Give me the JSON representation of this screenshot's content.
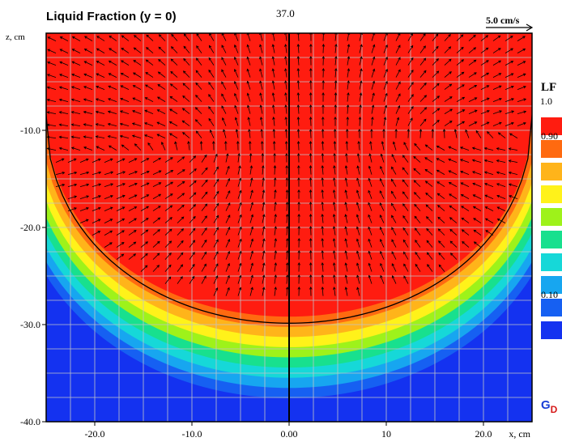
{
  "chart_data": {
    "type": "heatmap",
    "title": "Liquid Fraction  (y = 0)",
    "time_label": "37.0",
    "xlabel": "x, cm",
    "ylabel": "z, cm",
    "xlim": [
      -25,
      25
    ],
    "ylim": [
      -40,
      0
    ],
    "x_ticks": [
      {
        "v": -20,
        "label": "-20.0"
      },
      {
        "v": -10,
        "label": "-10.0"
      },
      {
        "v": 0,
        "label": "0.00"
      },
      {
        "v": 10,
        "label": "10"
      },
      {
        "v": 20,
        "label": "20.0"
      }
    ],
    "y_ticks": [
      {
        "v": -10,
        "label": "-10.0"
      },
      {
        "v": -20,
        "label": "-20.0"
      },
      {
        "v": -30,
        "label": "-30.0"
      },
      {
        "v": -40,
        "label": "-40.0"
      }
    ],
    "grid": true,
    "velocity_scale_label": "5.0 cm/s",
    "pool_boundary": {
      "x_half_width": 25,
      "top_z": -6,
      "bottom_z": -29
    },
    "legend": {
      "title": "LF",
      "top_label": "1.0",
      "levels": [
        {
          "label": "",
          "color": "#ff1c10"
        },
        {
          "label": "0.90",
          "color": "#ff6a10"
        },
        {
          "label": "",
          "color": "#ffb41a"
        },
        {
          "label": "",
          "color": "#fff21a"
        },
        {
          "label": "",
          "color": "#9ef21a"
        },
        {
          "label": "",
          "color": "#18e08e"
        },
        {
          "label": "",
          "color": "#16d8d8"
        },
        {
          "label": "",
          "color": "#17a6f0"
        },
        {
          "label": "0.10",
          "color": "#1660f2"
        },
        {
          "label": "",
          "color": "#1432f0"
        }
      ]
    },
    "colors": {
      "solid": "#1432f0",
      "liquid": "#ff1c10",
      "grid": "#bfc3c8",
      "vectors": "#000000",
      "isoline": "#000000"
    },
    "logo_text_g": "G",
    "logo_text_d": "D"
  }
}
